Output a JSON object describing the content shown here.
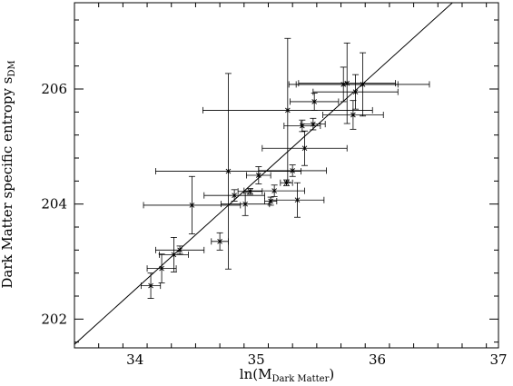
{
  "chart_data": {
    "type": "scatter",
    "xlabel_main": "ln(M",
    "xlabel_sub": "Dark Matter",
    "xlabel_close": ")",
    "ylabel_main": "Dark Matter specific entropy s",
    "ylabel_sub": "DM",
    "xlim": [
      33.5,
      37
    ],
    "ylim": [
      201.5,
      207.5
    ],
    "xticks": [
      34,
      35,
      36,
      37
    ],
    "yticks": [
      202,
      204,
      206
    ],
    "xtick_labels": [
      "34",
      "35",
      "36",
      "37"
    ],
    "ytick_labels": [
      "202",
      "204",
      "206"
    ],
    "grid": false,
    "fit_line": {
      "x": [
        33.5,
        36.62
      ],
      "y": [
        201.56,
        207.5
      ]
    },
    "points": [
      {
        "x": 34.13,
        "y": 202.58,
        "xerr": 0.08,
        "yerr": 0.22
      },
      {
        "x": 34.22,
        "y": 202.88,
        "xerr": 0.12,
        "yerr": 0.25
      },
      {
        "x": 34.32,
        "y": 203.12,
        "xerr": 0.12,
        "yerr": 0.3
      },
      {
        "x": 34.37,
        "y": 203.2,
        "xerr": 0.2,
        "yerr": 0.07
      },
      {
        "x": 34.47,
        "y": 203.98,
        "xerr": 0.4,
        "yerr": 0.5
      },
      {
        "x": 34.7,
        "y": 203.35,
        "xerr": 0.07,
        "yerr": 0.15
      },
      {
        "x": 34.77,
        "y": 204.57,
        "xerr": 0.6,
        "yerr": 1.7
      },
      {
        "x": 34.82,
        "y": 204.15,
        "xerr": 0.25,
        "yerr": 0.1
      },
      {
        "x": 34.91,
        "y": 204.0,
        "xerr": 0.2,
        "yerr": 0.2
      },
      {
        "x": 34.95,
        "y": 204.22,
        "xerr": 0.1,
        "yerr": 0.05
      },
      {
        "x": 35.02,
        "y": 204.5,
        "xerr": 0.1,
        "yerr": 0.15
      },
      {
        "x": 35.12,
        "y": 204.05,
        "xerr": 0.05,
        "yerr": 0.07
      },
      {
        "x": 35.15,
        "y": 204.23,
        "xerr": 0.25,
        "yerr": 0.1
      },
      {
        "x": 35.25,
        "y": 204.37,
        "xerr": 0.05,
        "yerr": 0.05
      },
      {
        "x": 35.26,
        "y": 205.63,
        "xerr": 0.7,
        "yerr": 1.25
      },
      {
        "x": 35.3,
        "y": 204.58,
        "xerr": 0.28,
        "yerr": 0.1
      },
      {
        "x": 35.34,
        "y": 204.07,
        "xerr": 0.22,
        "yerr": 0.3
      },
      {
        "x": 35.38,
        "y": 205.36,
        "xerr": 0.15,
        "yerr": 0.1
      },
      {
        "x": 35.4,
        "y": 204.97,
        "xerr": 0.35,
        "yerr": 0.3
      },
      {
        "x": 35.47,
        "y": 205.39,
        "xerr": 0.1,
        "yerr": 0.1
      },
      {
        "x": 35.48,
        "y": 205.78,
        "xerr": 0.2,
        "yerr": 0.15
      },
      {
        "x": 35.72,
        "y": 206.08,
        "xerr": 0.45,
        "yerr": 0.3
      },
      {
        "x": 35.75,
        "y": 206.1,
        "xerr": 0.4,
        "yerr": 0.7
      },
      {
        "x": 35.8,
        "y": 205.55,
        "xerr": 0.25,
        "yerr": 0.25
      },
      {
        "x": 35.82,
        "y": 205.95,
        "xerr": 0.35,
        "yerr": 0.3
      },
      {
        "x": 35.88,
        "y": 206.08,
        "xerr": 0.55,
        "yerr": 0.55
      }
    ]
  }
}
